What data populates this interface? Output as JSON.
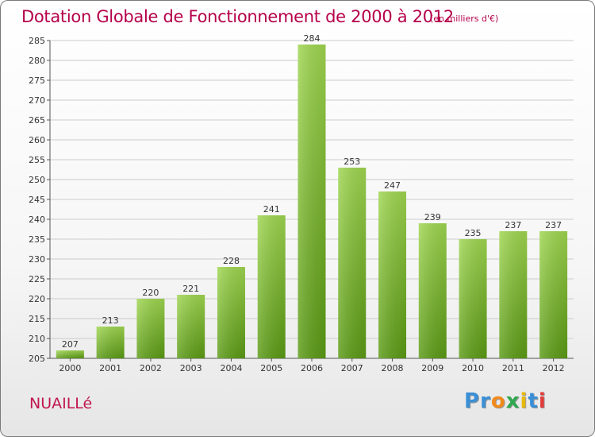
{
  "title": "Dotation Globale de Fonctionnement de 2000 à 2012",
  "subtitle": "(en milliers d'€)",
  "commune": "NUAILLé",
  "logo": {
    "letters": [
      "P",
      "r",
      "o",
      "x",
      "i",
      "t",
      "i"
    ],
    "colors": [
      "#3a8fd6",
      "#3a8fd6",
      "#f08a1c",
      "#2fa84f",
      "#e8b90c",
      "#3a8fd6",
      "#e23b3b"
    ]
  },
  "colors": {
    "title": "#b5004a",
    "bar_light": "#9fd650",
    "bar_dark": "#5a9a14",
    "grid": "#cccccc"
  },
  "chart_data": {
    "type": "bar",
    "title": "Dotation Globale de Fonctionnement de 2000 à 2012",
    "subtitle": "(en milliers d'€)",
    "categories": [
      "2000",
      "2001",
      "2002",
      "2003",
      "2004",
      "2005",
      "2006",
      "2007",
      "2008",
      "2009",
      "2010",
      "2011",
      "2012"
    ],
    "values": [
      207,
      213,
      220,
      221,
      228,
      241,
      284,
      253,
      247,
      239,
      235,
      237,
      237
    ],
    "ylim": [
      205,
      285
    ],
    "yticks": [
      205,
      210,
      215,
      220,
      225,
      230,
      235,
      240,
      245,
      250,
      255,
      260,
      265,
      270,
      275,
      280,
      285
    ],
    "grid": true,
    "legend": "none"
  }
}
